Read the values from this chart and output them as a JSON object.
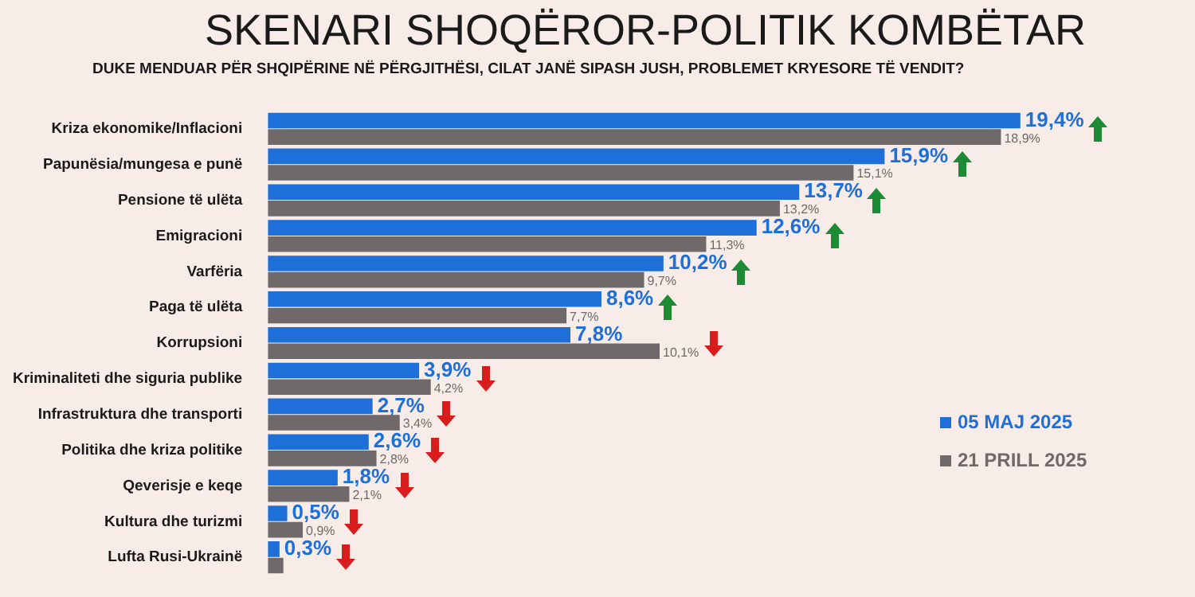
{
  "chart_data": {
    "type": "bar",
    "orientation": "horizontal",
    "title": "SKENARI SHOQËROR-POLITIK KOMBËTAR",
    "subtitle": "DUKE MENDUAR PËR SHQIPËRINE NË PËRGJITHËSI, CILAT JANË SIPASH JUSH, PROBLEMET KRYESORE TË VENDIT?",
    "categories": [
      "Kriza ekonomike/Inflacioni",
      "Papunësia/mungesa e punë",
      "Pensione të ulëta",
      "Emigracioni",
      "Varfëria",
      "Paga të ulëta",
      "Korrupsioni",
      "Kriminaliteti dhe siguria publike",
      "Infrastruktura dhe transporti",
      "Politika dhe kriza politike",
      "Qeverisje e keqe",
      "Kultura dhe turizmi",
      "Lufta Rusi-Ukrainë"
    ],
    "series": [
      {
        "name": "05 MAJ 2025",
        "color": "#1f6fd8",
        "values": [
          19.4,
          15.9,
          13.7,
          12.6,
          10.2,
          8.6,
          7.8,
          3.9,
          2.7,
          2.6,
          1.8,
          0.5,
          0.3
        ],
        "value_labels": [
          "19,4%",
          "15,9%",
          "13,7%",
          "12,6%",
          "10,2%",
          "8,6%",
          "7,8%",
          "3,9%",
          "2,7%",
          "2,6%",
          "1,8%",
          "0,5%",
          "0,3%"
        ]
      },
      {
        "name": "21 PRILL 2025",
        "color": "#6f6a69",
        "values": [
          18.9,
          15.1,
          13.2,
          11.3,
          9.7,
          7.7,
          10.1,
          4.2,
          3.4,
          2.8,
          2.1,
          0.9,
          0.4
        ],
        "value_labels": [
          "18,9%",
          "15,1%",
          "13,2%",
          "11,3%",
          "9,7%",
          "7,7%",
          "10,1%",
          "4,2%",
          "3,4%",
          "2,8%",
          "2,1%",
          "0,9%",
          null
        ]
      }
    ],
    "legend": "bottom right"
  }
}
